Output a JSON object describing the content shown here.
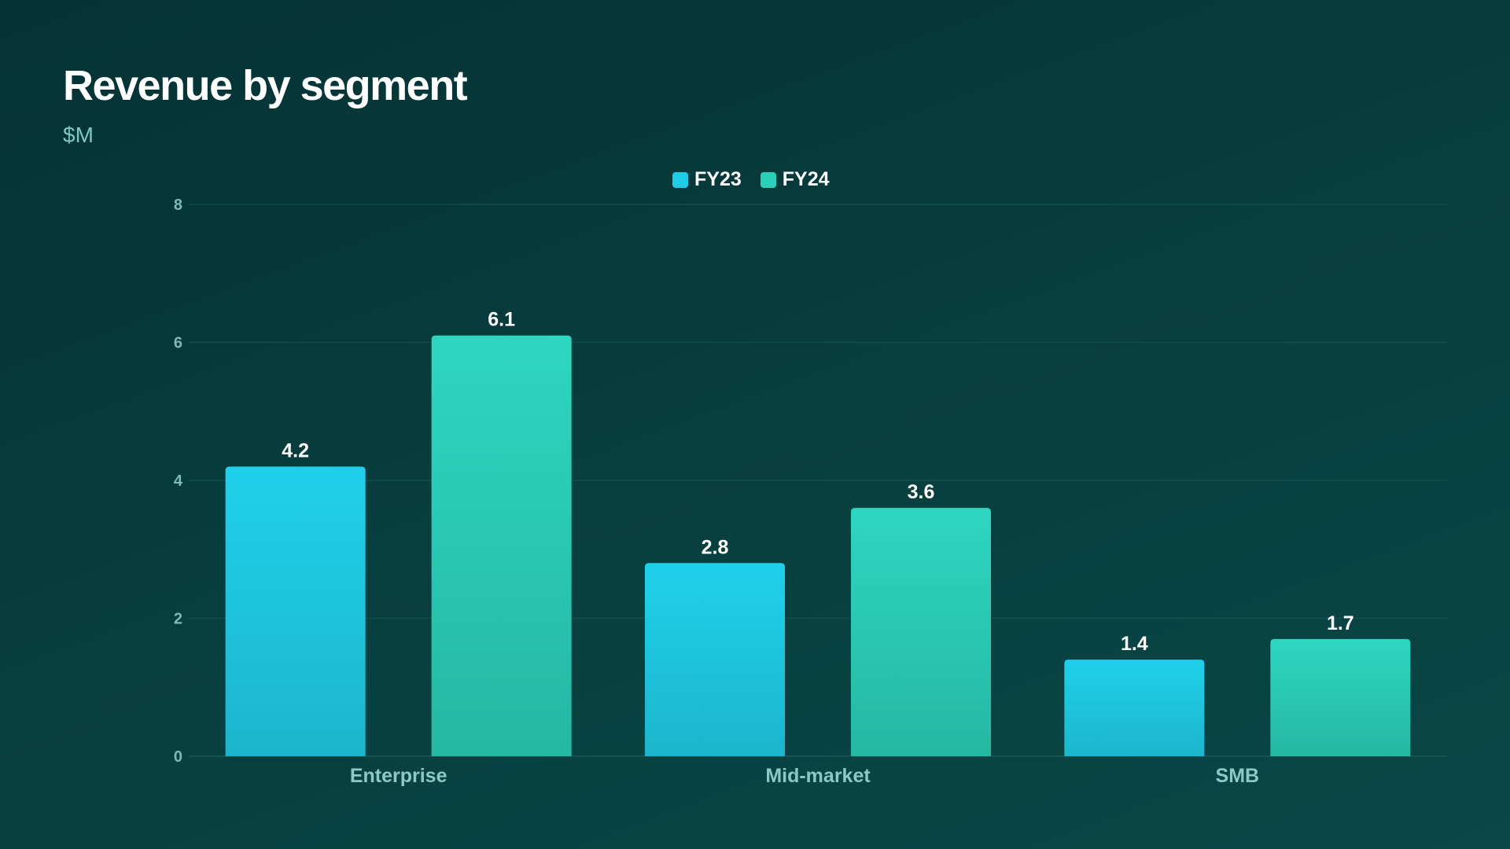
{
  "header": {
    "title": "Revenue by segment",
    "subtitle": "$M"
  },
  "colors": {
    "FY23": "#1fcbe6",
    "FY24": "#2bd0b8"
  },
  "chart_data": {
    "type": "bar",
    "title": "Revenue by segment",
    "subtitle": "$M",
    "xlabel": "",
    "ylabel": "",
    "categories": [
      "Enterprise",
      "Mid-market",
      "SMB"
    ],
    "series": [
      {
        "name": "FY23",
        "values": [
          4.2,
          2.8,
          1.4
        ]
      },
      {
        "name": "FY24",
        "values": [
          6.1,
          3.6,
          1.7
        ]
      }
    ],
    "ylim": [
      0,
      8
    ],
    "yticks": [
      0,
      2,
      4,
      6,
      8
    ],
    "grid": true,
    "legend": "top-center",
    "data_labels": true
  }
}
